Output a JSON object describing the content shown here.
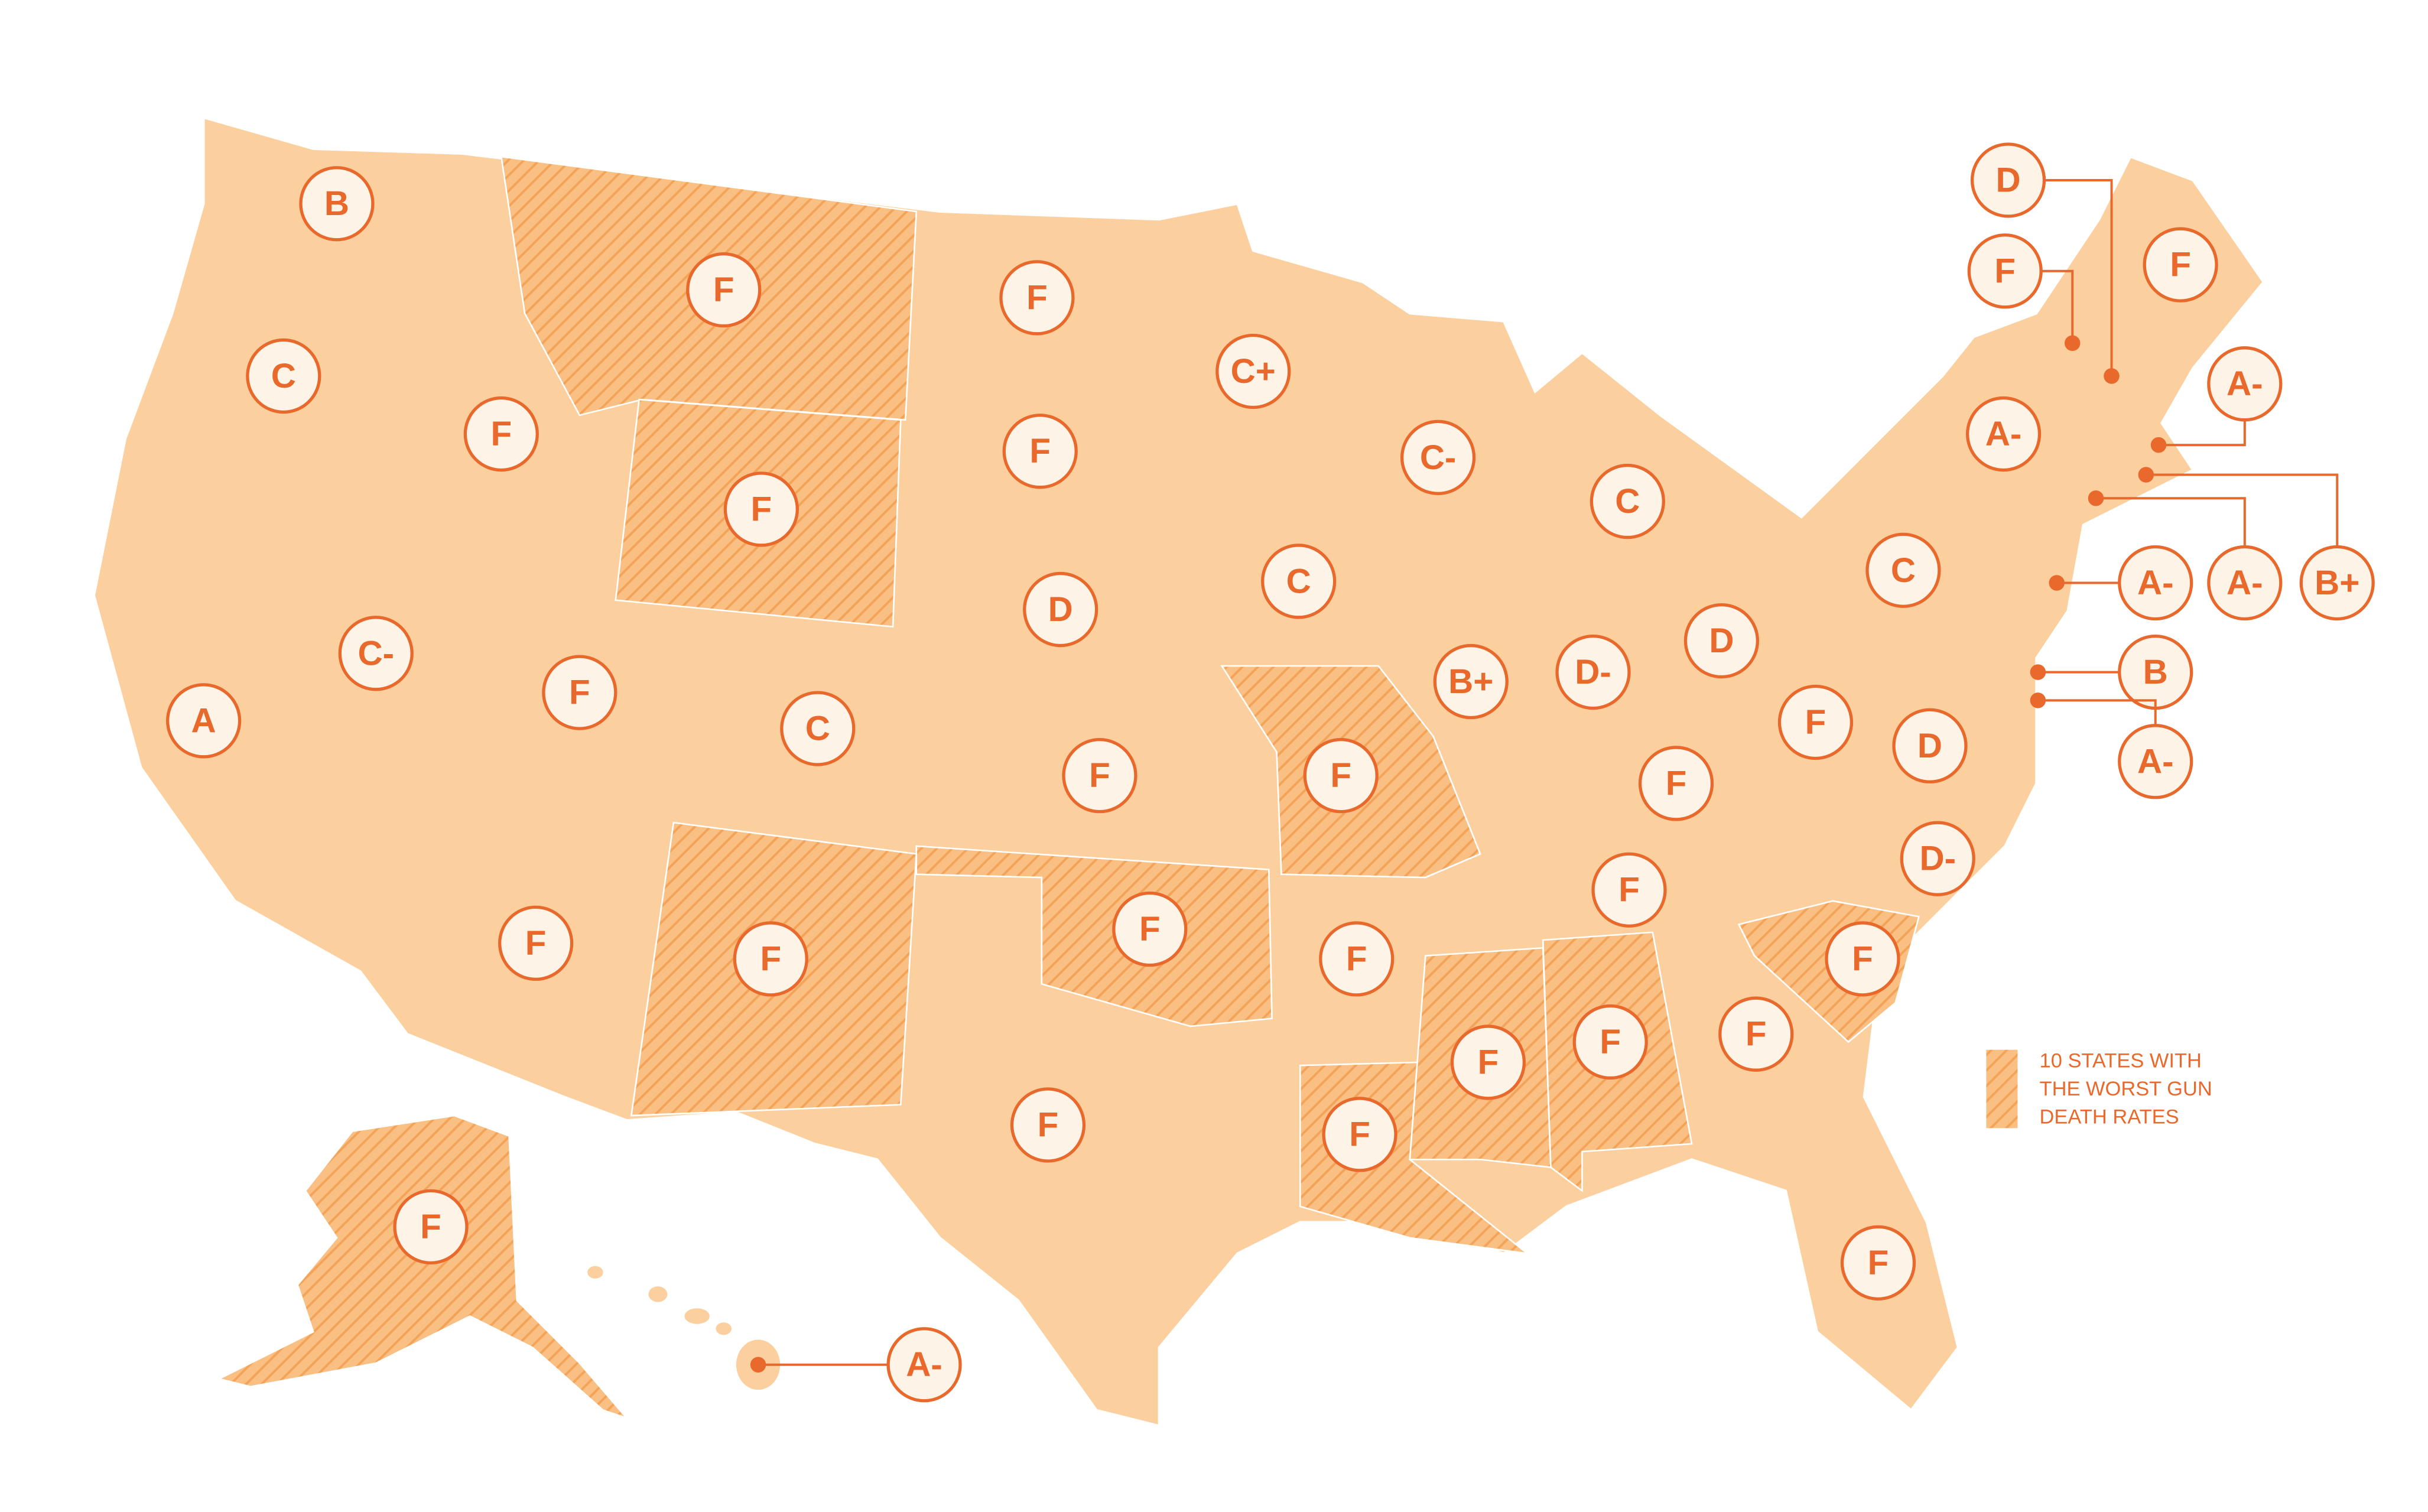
{
  "grades": [
    {
      "grade": "B"
    },
    {
      "grade": "C"
    },
    {
      "grade": "A"
    },
    {
      "grade": "F"
    },
    {
      "grade": "C-"
    },
    {
      "grade": "F",
      "worst": true
    },
    {
      "grade": "F",
      "worst": true
    },
    {
      "grade": "F"
    },
    {
      "grade": "F"
    },
    {
      "grade": "C"
    },
    {
      "grade": "F",
      "worst": true
    },
    {
      "grade": "F"
    },
    {
      "grade": "F"
    },
    {
      "grade": "D"
    },
    {
      "grade": "F"
    },
    {
      "grade": "F",
      "worst": true
    },
    {
      "grade": "F"
    },
    {
      "grade": "C+"
    },
    {
      "grade": "C"
    },
    {
      "grade": "F",
      "worst": true
    },
    {
      "grade": "F"
    },
    {
      "grade": "F",
      "worst": true
    },
    {
      "grade": "C-"
    },
    {
      "grade": "B+"
    },
    {
      "grade": "F",
      "worst": true
    },
    {
      "grade": "C"
    },
    {
      "grade": "D-"
    },
    {
      "grade": "F"
    },
    {
      "grade": "F"
    },
    {
      "grade": "F",
      "worst": true
    },
    {
      "grade": "D"
    },
    {
      "grade": "F"
    },
    {
      "grade": "F"
    },
    {
      "grade": "F"
    },
    {
      "grade": "F",
      "worst": true
    },
    {
      "grade": "D-"
    },
    {
      "grade": "D"
    },
    {
      "grade": "C"
    },
    {
      "grade": "A-"
    },
    {
      "grade": "F"
    },
    {
      "grade": "D"
    },
    {
      "grade": "F"
    },
    {
      "grade": "A-"
    },
    {
      "grade": "B+"
    },
    {
      "grade": "A-"
    },
    {
      "grade": "A-"
    },
    {
      "grade": "B"
    },
    {
      "grade": "A-"
    },
    {
      "grade": "F",
      "worst": true
    },
    {
      "grade": "A-"
    }
  ],
  "legend": {
    "lines": [
      "10 STATES WITH",
      "THE WORST GUN",
      "DEATH RATES"
    ]
  }
}
